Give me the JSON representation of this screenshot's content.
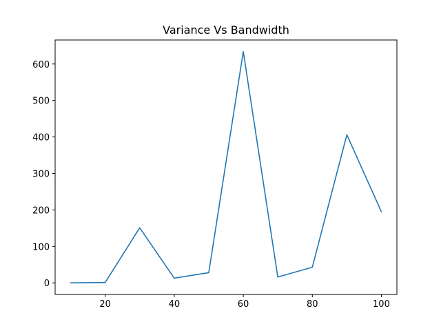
{
  "chart_data": {
    "type": "line",
    "title": "Variance Vs Bandwidth",
    "xlabel": "",
    "ylabel": "",
    "x": [
      10,
      20,
      30,
      40,
      50,
      60,
      70,
      80,
      90,
      100
    ],
    "series": [
      {
        "values": [
          0,
          1,
          151,
          13,
          28,
          634,
          16,
          43,
          406,
          195
        ],
        "color": "#1f77b4"
      }
    ],
    "xlim": [
      5.5,
      104.5
    ],
    "ylim": [
      -31.7,
      665.7
    ],
    "xticks": [
      20,
      40,
      60,
      80,
      100
    ],
    "yticks": [
      0,
      100,
      200,
      300,
      400,
      500,
      600
    ],
    "grid": false,
    "legend": "none"
  }
}
